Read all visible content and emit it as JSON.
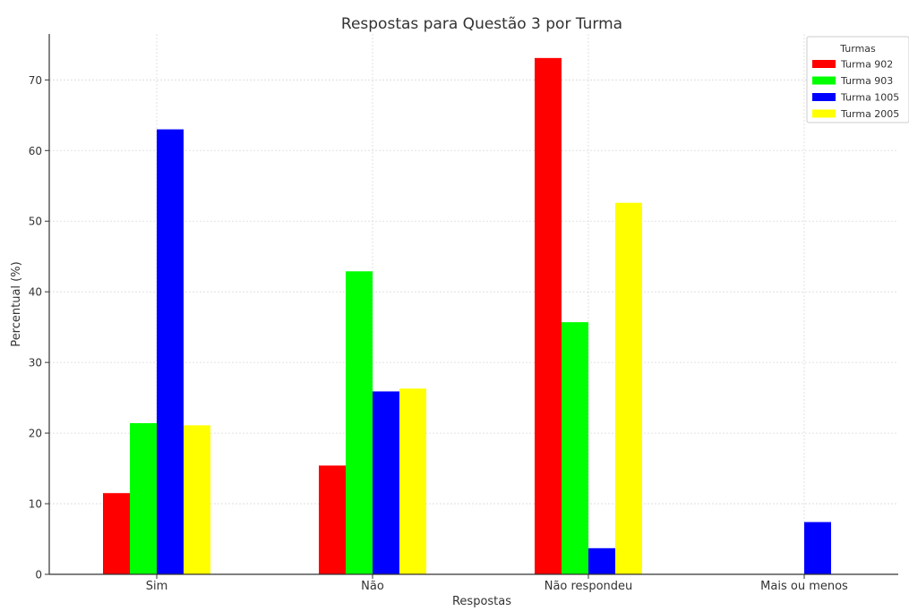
{
  "chart_data": {
    "type": "bar",
    "title": "Respostas para Questão 3 por Turma",
    "xlabel": "Respostas",
    "ylabel": "Percentual (%)",
    "categories": [
      "Sim",
      "Não",
      "Não respondeu",
      "Mais ou menos"
    ],
    "ylim": [
      0,
      76.5
    ],
    "yticks": [
      0,
      10,
      20,
      30,
      40,
      50,
      60,
      70
    ],
    "grid": true,
    "legend": {
      "title": "Turmas",
      "position": "top-right"
    },
    "series": [
      {
        "name": "Turma 902",
        "color": "#ff0000",
        "values": [
          11.5,
          15.4,
          73.1,
          0
        ]
      },
      {
        "name": "Turma 903",
        "color": "#00ff00",
        "values": [
          21.4,
          42.9,
          35.7,
          0
        ]
      },
      {
        "name": "Turma 1005",
        "color": "#0000ff",
        "values": [
          63.0,
          25.9,
          3.7,
          7.4
        ]
      },
      {
        "name": "Turma 2005",
        "color": "#ffff00",
        "values": [
          21.1,
          26.3,
          52.6,
          0
        ]
      }
    ]
  }
}
